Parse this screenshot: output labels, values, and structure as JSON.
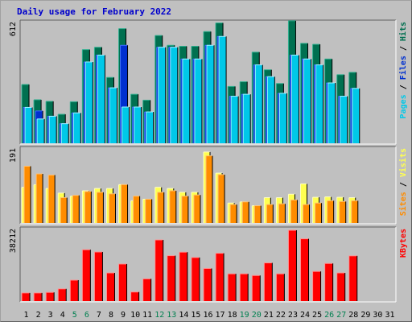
{
  "title": "Daily usage for February 2022",
  "colors": {
    "hits": "#007050",
    "hits_light": "#30b090",
    "files": "#0030d0",
    "files_light": "#4070ff",
    "pages": "#00c8e8",
    "pages_light": "#a0f4ff",
    "visits": "#ffff50",
    "visits_light": "#ffffc0",
    "sites": "#ff8c00",
    "sites_light": "#ffc070",
    "kbytes": "#ff0000",
    "kbytes_light": "#ff9090",
    "panel_bg": "#c0c0c0",
    "frame": "#a0a0a0",
    "weekend_label": "#008050",
    "weekday_label": "#000000"
  },
  "chart_data": [
    {
      "type": "bar",
      "title": "Daily usage for February 2022",
      "ylabel_parts": [
        "Pages",
        "Files",
        "Hits"
      ],
      "ymax_label": "612",
      "ylim": [
        0,
        612
      ],
      "x": [
        "1",
        "2",
        "3",
        "4",
        "5",
        "6",
        "7",
        "8",
        "9",
        "10",
        "11",
        "12",
        "13",
        "14",
        "15",
        "16",
        "17",
        "18",
        "19",
        "20",
        "21",
        "22",
        "23",
        "24",
        "25",
        "26",
        "27",
        "28",
        "29",
        "30",
        "31"
      ],
      "series": [
        {
          "name": "Hits",
          "values": [
            300,
            222,
            214,
            148,
            212,
            478,
            490,
            336,
            585,
            250,
            220,
            550,
            500,
            495,
            495,
            570,
            614,
            290,
            314,
            465,
            375,
            305,
            625,
            510,
            505,
            430,
            350,
            362,
            0,
            0,
            0
          ]
        },
        {
          "name": "Files",
          "values": [
            183,
            165,
            138,
            100,
            155,
            415,
            450,
            283,
            500,
            185,
            160,
            490,
            490,
            430,
            430,
            500,
            545,
            240,
            250,
            400,
            340,
            255,
            450,
            430,
            400,
            308,
            240,
            280,
            0,
            0,
            0
          ]
        },
        {
          "name": "Pages",
          "values": [
            183,
            124,
            138,
            100,
            155,
            415,
            450,
            283,
            185,
            185,
            160,
            490,
            490,
            430,
            430,
            500,
            545,
            240,
            250,
            400,
            340,
            255,
            450,
            430,
            400,
            308,
            240,
            280,
            0,
            0,
            0
          ]
        }
      ]
    },
    {
      "type": "bar",
      "ylabel_parts": [
        "Sites",
        "Visits"
      ],
      "ymax_label": "191",
      "ylim": [
        0,
        191
      ],
      "x": [
        "1",
        "2",
        "3",
        "4",
        "5",
        "6",
        "7",
        "8",
        "9",
        "10",
        "11",
        "12",
        "13",
        "14",
        "15",
        "16",
        "17",
        "18",
        "19",
        "20",
        "21",
        "22",
        "23",
        "24",
        "25",
        "26",
        "27",
        "28",
        "29",
        "30",
        "31"
      ],
      "series": [
        {
          "name": "Visits",
          "values": [
            93,
            100,
            90,
            78,
            70,
            84,
            90,
            90,
            100,
            58,
            62,
            93,
            90,
            80,
            80,
            185,
            130,
            52,
            55,
            45,
            66,
            66,
            75,
            102,
            67,
            68,
            67,
            66,
            0,
            0,
            0
          ]
        },
        {
          "name": "Sites",
          "values": [
            148,
            128,
            125,
            66,
            72,
            82,
            80,
            76,
            100,
            70,
            62,
            80,
            84,
            70,
            73,
            175,
            126,
            48,
            55,
            45,
            48,
            50,
            60,
            48,
            52,
            58,
            56,
            58,
            0,
            0,
            0
          ]
        }
      ]
    },
    {
      "type": "bar",
      "ylabel_parts": [
        "KBytes"
      ],
      "ymax_label": "38212",
      "ylim": [
        0,
        38212
      ],
      "x": [
        "1",
        "2",
        "3",
        "4",
        "5",
        "6",
        "7",
        "8",
        "9",
        "10",
        "11",
        "12",
        "13",
        "14",
        "15",
        "16",
        "17",
        "18",
        "19",
        "20",
        "21",
        "22",
        "23",
        "24",
        "25",
        "26",
        "27",
        "28",
        "29",
        "30",
        "31"
      ],
      "series": [
        {
          "name": "KBytes",
          "values": [
            4400,
            4400,
            4700,
            6600,
            11300,
            27700,
            26500,
            15200,
            20000,
            4900,
            12000,
            33000,
            24500,
            26400,
            23500,
            17600,
            25800,
            14700,
            14700,
            13800,
            20600,
            14700,
            38212,
            33600,
            16000,
            20300,
            15200,
            24400,
            0,
            0,
            0
          ]
        }
      ]
    }
  ],
  "weekend_days": [
    "5",
    "6",
    "12",
    "13",
    "19",
    "20",
    "26",
    "27"
  ]
}
